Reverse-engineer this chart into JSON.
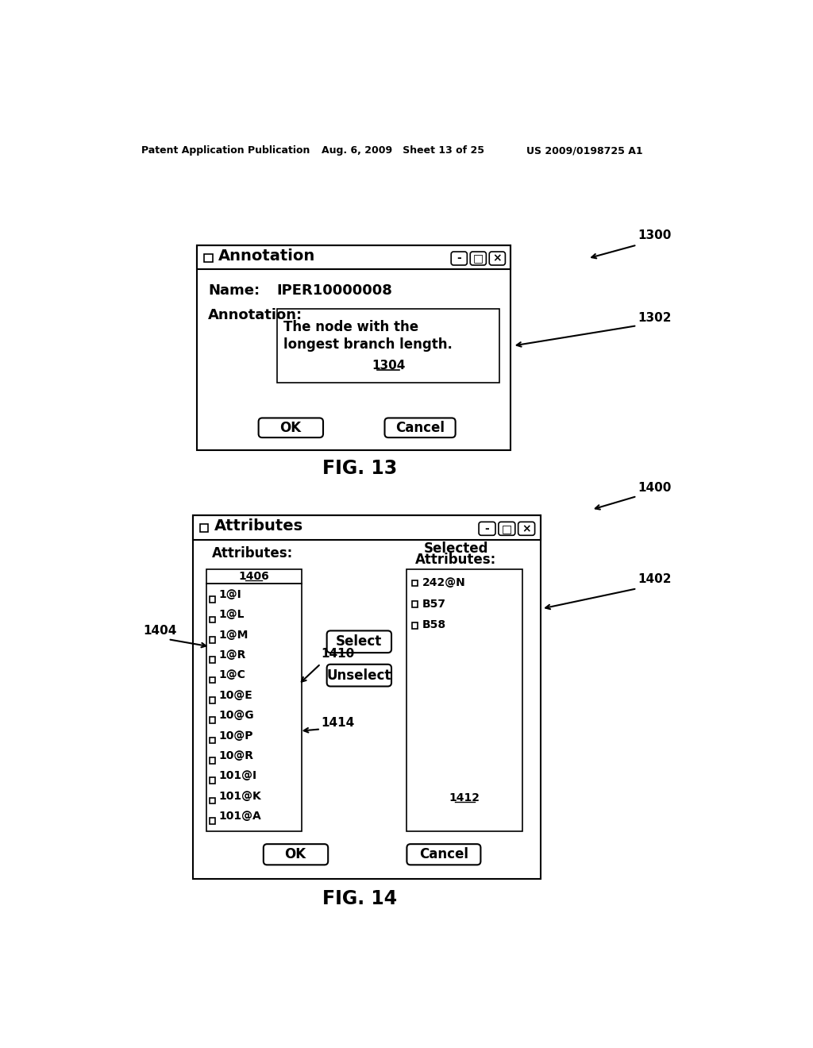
{
  "header_left": "Patent Application Publication",
  "header_mid": "Aug. 6, 2009   Sheet 13 of 25",
  "header_right": "US 2009/0198725 A1",
  "fig13_label": "FIG. 13",
  "fig14_label": "FIG. 14",
  "dlg1_title": "Annotation",
  "dlg1_name_label": "Name:",
  "dlg1_name_value": "IPER10000008",
  "dlg1_annotation_label": "Annotation:",
  "dlg1_annotation_text1": "The node with the",
  "dlg1_annotation_text2": "longest branch length.",
  "dlg1_ref1304": "1304",
  "dlg1_ok": "OK",
  "dlg1_cancel": "Cancel",
  "ref1300": "1300",
  "ref1302": "1302",
  "dlg2_title": "Attributes",
  "dlg2_attr_label": "Attributes:",
  "dlg2_sel_label1": "Selected",
  "dlg2_sel_label2": "Attributes:",
  "dlg2_ref1406": "1406",
  "dlg2_list_items": [
    "1@I",
    "1@L",
    "1@M",
    "1@R",
    "1@C",
    "10@E",
    "10@G",
    "10@P",
    "10@R",
    "101@I",
    "101@K",
    "101@A"
  ],
  "dlg2_sel_items": [
    "242@N",
    "B57",
    "B58"
  ],
  "dlg2_select_btn": "Select",
  "dlg2_unselect_btn": "Unselect",
  "dlg2_ok": "OK",
  "dlg2_cancel": "Cancel",
  "ref1400": "1400",
  "ref1402": "1402",
  "ref1404": "1404",
  "ref1410": "1410",
  "ref1412": "1412",
  "ref1414": "1414",
  "bg_color": "#ffffff",
  "border_color": "#000000"
}
